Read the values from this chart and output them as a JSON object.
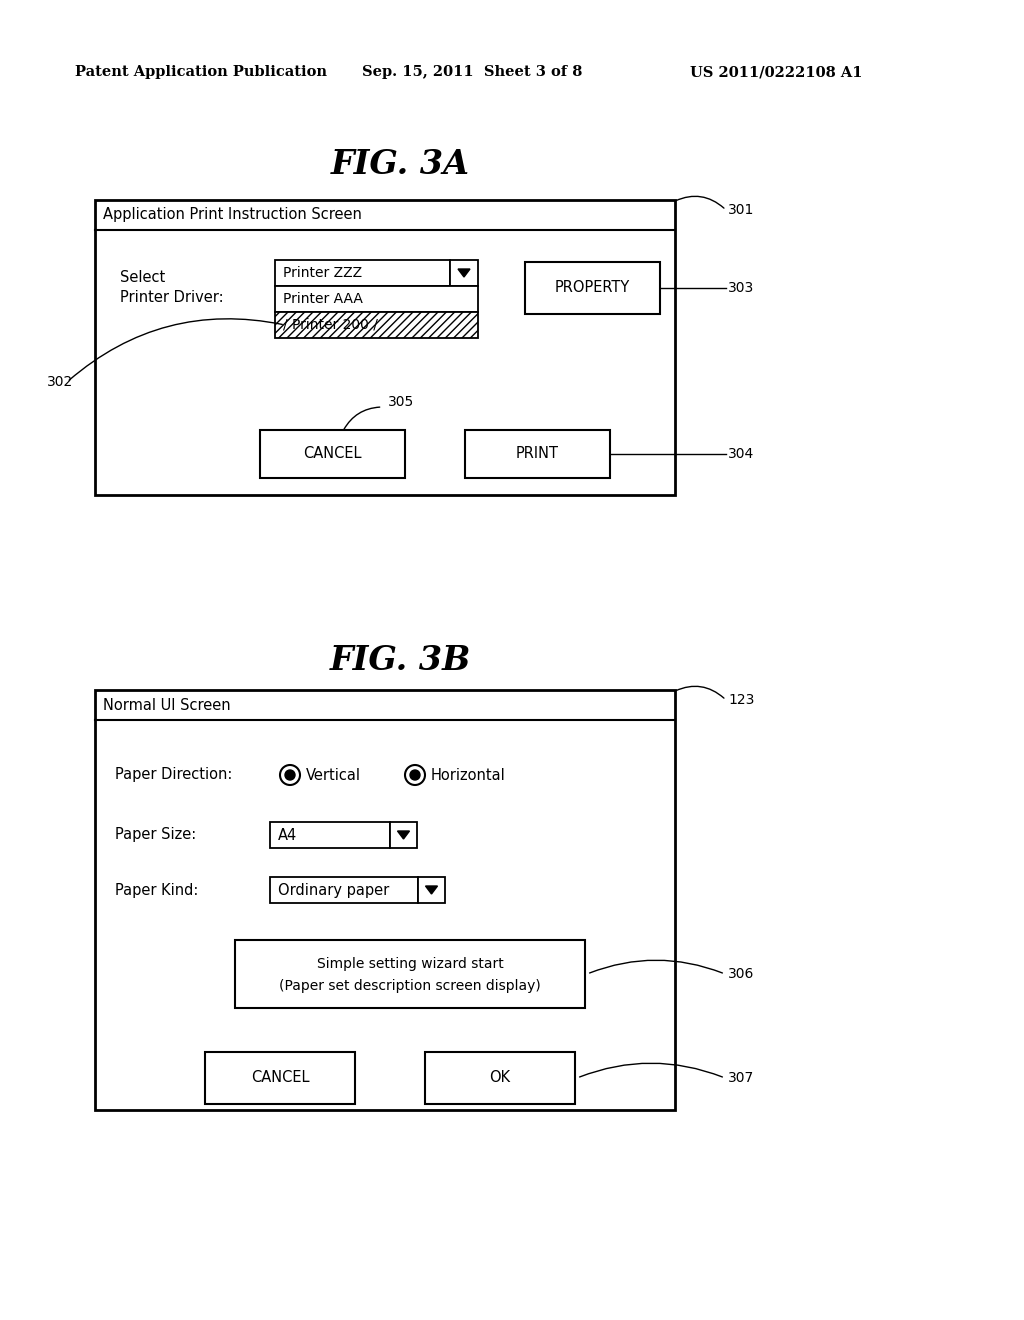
{
  "background_color": "#ffffff",
  "header_text": "Patent Application Publication",
  "header_date": "Sep. 15, 2011  Sheet 3 of 8",
  "header_patent": "US 2011/0222108 A1",
  "fig3a_title": "FIG. 3A",
  "fig3b_title": "FIG. 3B",
  "fig3a": {
    "screen_title": "Application Print Instruction Screen",
    "label_select": "Select",
    "label_driver": "Printer Driver:",
    "dropdown_top": "Printer ZZZ",
    "dropdown_mid": "Printer AAA",
    "dropdown_bot": "/ Printer 200 /",
    "btn_property": "PROPERTY",
    "btn_cancel": "CANCEL",
    "btn_print": "PRINT",
    "label_301": "301",
    "label_302": "302",
    "label_303": "303",
    "label_304": "304",
    "label_305": "305"
  },
  "fig3b": {
    "screen_title": "Normal UI Screen",
    "label_paper_dir": "Paper Direction:",
    "radio_vertical": "Vertical",
    "radio_horizontal": "Horizontal",
    "label_paper_size": "Paper Size:",
    "dropdown_size": "A4",
    "label_paper_kind": "Paper Kind:",
    "dropdown_kind": "Ordinary paper",
    "btn_wizard_line1": "Simple setting wizard start",
    "btn_wizard_line2": "(Paper set description screen display)",
    "btn_cancel": "CANCEL",
    "btn_ok": "OK",
    "label_123": "123",
    "label_306": "306",
    "label_307": "307"
  }
}
